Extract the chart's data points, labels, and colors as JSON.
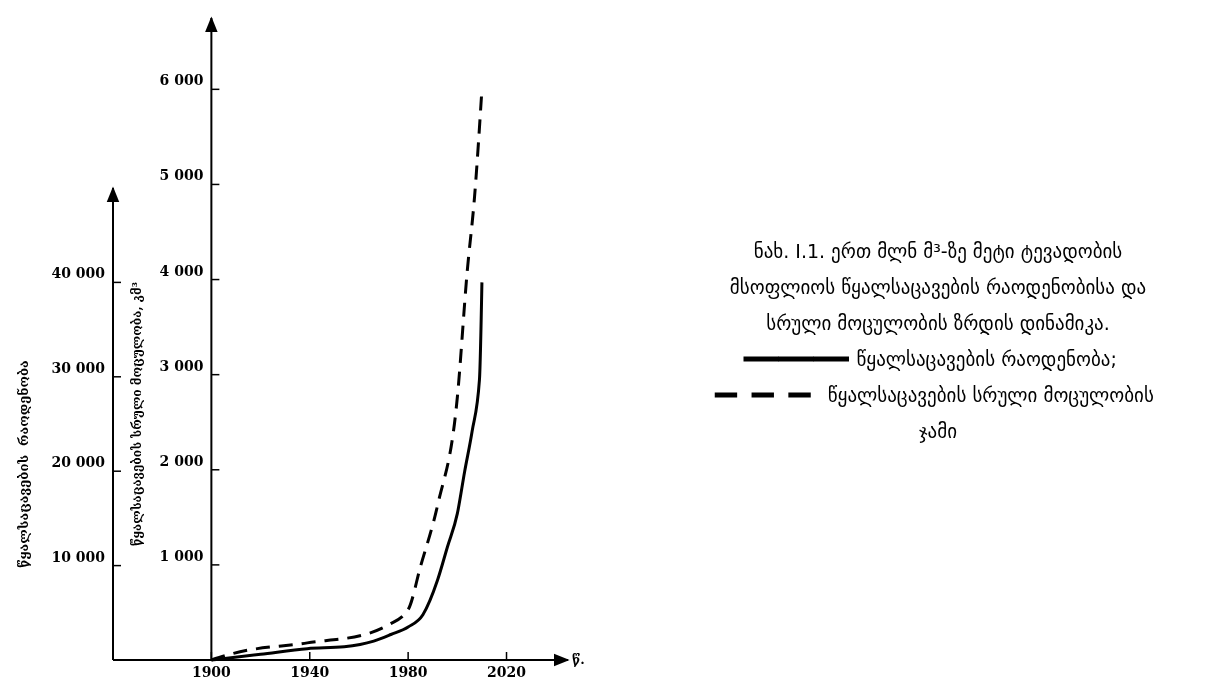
{
  "chart_data": {
    "type": "line",
    "title": "ნახ. I.1. ერთ მლნ მ³-ზე მეტი ტევადობის მსოფლიოს წყალსაცავების რაოდენობისა და სრული მოცულობის ზრდის დინამიკა.",
    "xlabel": "წ.",
    "ylabel": "წყალსაცავების  რაოდენობა",
    "y2label": "წყალსაცავების სრული მოცულობა, კმ³",
    "xlim": [
      1860,
      2045
    ],
    "xticks": [
      1900,
      1940,
      1980,
      2020
    ],
    "ylim": [
      0,
      50000
    ],
    "yticks": [
      {
        "value": 10000,
        "label": "10 000"
      },
      {
        "value": 20000,
        "label": "20 000"
      },
      {
        "value": 30000,
        "label": "30 000"
      },
      {
        "value": 40000,
        "label": "40 000"
      }
    ],
    "y2lim": [
      0,
      6750
    ],
    "y2ticks": [
      {
        "value": 1000,
        "label": "1 000"
      },
      {
        "value": 2000,
        "label": "2 000"
      },
      {
        "value": 3000,
        "label": "3 000"
      },
      {
        "value": 4000,
        "label": "4 000"
      },
      {
        "value": 5000,
        "label": "5 000"
      },
      {
        "value": 6000,
        "label": "6 000"
      }
    ],
    "legend": "right",
    "grid": false,
    "series": [
      {
        "name": "წყალსაცავების რაოდენობა;",
        "color": "#000000",
        "line_style": "solid",
        "x": [
          1900,
          1920,
          1939,
          1954,
          1966,
          1973,
          1980,
          1986,
          1992,
          1996,
          2000,
          2003,
          2006,
          2009,
          2010
        ],
        "values": [
          0,
          600,
          1200,
          1400,
          2000,
          2700,
          3500,
          4800,
          8500,
          12000,
          15500,
          20000,
          24200,
          29700,
          40000
        ]
      },
      {
        "name": "წყალსაცავების სრული მოცულობის ჯამი",
        "color": "#000000",
        "line_style": "dashed",
        "axis": "y2",
        "x": [
          1900,
          1909,
          1939,
          1964,
          1972,
          1980,
          1985,
          1992,
          2000,
          2004,
          2007,
          2010
        ],
        "values": [
          0,
          70,
          180,
          280,
          370,
          530,
          980,
          1630,
          2760,
          4080,
          4870,
          6000
        ]
      }
    ]
  }
}
